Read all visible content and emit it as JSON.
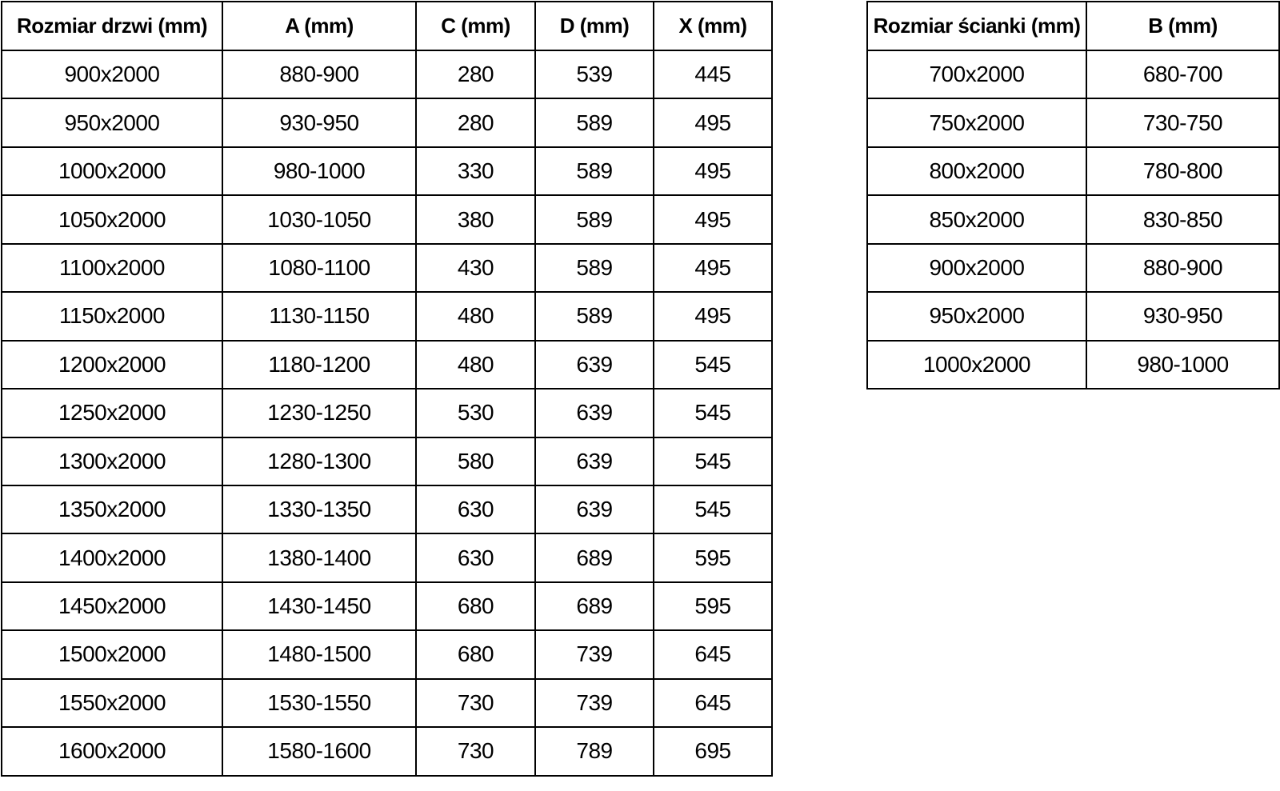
{
  "doors_table": {
    "name": "doors-dimensions-table",
    "headers": [
      "Rozmiar drzwi (mm)",
      "A (mm)",
      "C (mm)",
      "D (mm)",
      "X (mm)"
    ],
    "rows": [
      [
        "900x2000",
        "880-900",
        "280",
        "539",
        "445"
      ],
      [
        "950x2000",
        "930-950",
        "280",
        "589",
        "495"
      ],
      [
        "1000x2000",
        "980-1000",
        "330",
        "589",
        "495"
      ],
      [
        "1050x2000",
        "1030-1050",
        "380",
        "589",
        "495"
      ],
      [
        "1100x2000",
        "1080-1100",
        "430",
        "589",
        "495"
      ],
      [
        "1150x2000",
        "1130-1150",
        "480",
        "589",
        "495"
      ],
      [
        "1200x2000",
        "1180-1200",
        "480",
        "639",
        "545"
      ],
      [
        "1250x2000",
        "1230-1250",
        "530",
        "639",
        "545"
      ],
      [
        "1300x2000",
        "1280-1300",
        "580",
        "639",
        "545"
      ],
      [
        "1350x2000",
        "1330-1350",
        "630",
        "639",
        "545"
      ],
      [
        "1400x2000",
        "1380-1400",
        "630",
        "689",
        "595"
      ],
      [
        "1450x2000",
        "1430-1450",
        "680",
        "689",
        "595"
      ],
      [
        "1500x2000",
        "1480-1500",
        "680",
        "739",
        "645"
      ],
      [
        "1550x2000",
        "1530-1550",
        "730",
        "739",
        "645"
      ],
      [
        "1600x2000",
        "1580-1600",
        "730",
        "789",
        "695"
      ]
    ]
  },
  "wall_table": {
    "name": "wall-panel-dimensions-table",
    "headers": [
      "Rozmiar ścianki (mm)",
      "B (mm)"
    ],
    "rows": [
      [
        "700x2000",
        "680-700"
      ],
      [
        "750x2000",
        "730-750"
      ],
      [
        "800x2000",
        "780-800"
      ],
      [
        "850x2000",
        "830-850"
      ],
      [
        "900x2000",
        "880-900"
      ],
      [
        "950x2000",
        "930-950"
      ],
      [
        "1000x2000",
        "980-1000"
      ]
    ]
  },
  "colors": {
    "background": "#ffffff",
    "border": "#000000",
    "text": "#000000"
  }
}
